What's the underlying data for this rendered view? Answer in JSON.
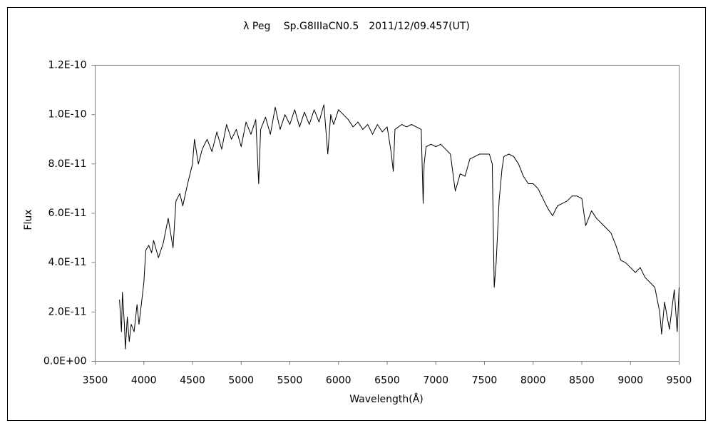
{
  "chart_data": {
    "type": "line",
    "title": "λ Peg　 Sp.G8IIIaCN0.5　2011/12/09.457(UT)",
    "x_label": "Wavelength(Å)",
    "y_label": "Flux",
    "xlim": [
      3500,
      9500
    ],
    "xticks": [
      3500,
      4000,
      4500,
      5000,
      5500,
      6000,
      6500,
      7000,
      7500,
      8000,
      8500,
      9000,
      9500
    ],
    "ylim": [
      0,
      1.2e-10
    ],
    "yticks": [
      {
        "value": 0,
        "label": "0.0E+00"
      },
      {
        "value": 2e-11,
        "label": "2.0E-11"
      },
      {
        "value": 4e-11,
        "label": "4.0E-11"
      },
      {
        "value": 6e-11,
        "label": "6.0E-11"
      },
      {
        "value": 8e-11,
        "label": "8.0E-11"
      },
      {
        "value": 1e-10,
        "label": "1.0E-10"
      },
      {
        "value": 1.2e-10,
        "label": "1.2E-10"
      }
    ],
    "grid": false,
    "series": [
      {
        "color": "#000000",
        "x": [
          3750,
          3770,
          3780,
          3800,
          3810,
          3830,
          3850,
          3870,
          3900,
          3930,
          3950,
          3980,
          4000,
          4020,
          4050,
          4080,
          4100,
          4150,
          4200,
          4250,
          4300,
          4330,
          4370,
          4400,
          4450,
          4500,
          4520,
          4560,
          4600,
          4650,
          4700,
          4750,
          4800,
          4850,
          4900,
          4950,
          5000,
          5050,
          5100,
          5150,
          5180,
          5200,
          5250,
          5300,
          5350,
          5400,
          5450,
          5500,
          5550,
          5600,
          5650,
          5700,
          5750,
          5800,
          5850,
          5890,
          5920,
          5950,
          6000,
          6050,
          6100,
          6150,
          6200,
          6250,
          6300,
          6350,
          6400,
          6450,
          6500,
          6540,
          6563,
          6580,
          6650,
          6700,
          6750,
          6800,
          6850,
          6870,
          6880,
          6900,
          6950,
          7000,
          7050,
          7100,
          7150,
          7200,
          7250,
          7300,
          7350,
          7400,
          7450,
          7500,
          7550,
          7580,
          7600,
          7620,
          7650,
          7680,
          7700,
          7750,
          7800,
          7850,
          7900,
          7950,
          8000,
          8050,
          8100,
          8150,
          8200,
          8250,
          8300,
          8350,
          8400,
          8450,
          8500,
          8540,
          8600,
          8650,
          8700,
          8750,
          8800,
          8850,
          8900,
          8950,
          9000,
          9050,
          9100,
          9150,
          9200,
          9250,
          9300,
          9320,
          9350,
          9400,
          9450,
          9480,
          9500
        ],
        "values": [
          2.5e-11,
          1.2e-11,
          2.8e-11,
          1.5e-11,
          5e-12,
          1.8e-11,
          8e-12,
          1.5e-11,
          1.2e-11,
          2.3e-11,
          1.5e-11,
          2.5e-11,
          3.2e-11,
          4.5e-11,
          4.7e-11,
          4.4e-11,
          4.9e-11,
          4.2e-11,
          4.8e-11,
          5.8e-11,
          4.6e-11,
          6.5e-11,
          6.8e-11,
          6.3e-11,
          7.2e-11,
          8e-11,
          9e-11,
          8e-11,
          8.6e-11,
          9e-11,
          8.5e-11,
          9.3e-11,
          8.6e-11,
          9.6e-11,
          9e-11,
          9.4e-11,
          8.7e-11,
          9.7e-11,
          9.2e-11,
          9.8e-11,
          7.2e-11,
          9.4e-11,
          9.9e-11,
          9.2e-11,
          1.03e-10,
          9.4e-11,
          1e-10,
          9.6e-11,
          1.02e-10,
          9.5e-11,
          1.01e-10,
          9.6e-11,
          1.02e-10,
          9.7e-11,
          1.04e-10,
          8.4e-11,
          1e-10,
          9.6e-11,
          1.02e-10,
          1e-10,
          9.8e-11,
          9.5e-11,
          9.7e-11,
          9.4e-11,
          9.6e-11,
          9.2e-11,
          9.6e-11,
          9.3e-11,
          9.5e-11,
          8.5e-11,
          7.7e-11,
          9.4e-11,
          9.6e-11,
          9.5e-11,
          9.6e-11,
          9.5e-11,
          9.4e-11,
          6.4e-11,
          8e-11,
          8.7e-11,
          8.8e-11,
          8.7e-11,
          8.8e-11,
          8.6e-11,
          8.4e-11,
          6.9e-11,
          7.6e-11,
          7.5e-11,
          8.2e-11,
          8.3e-11,
          8.4e-11,
          8.4e-11,
          8.4e-11,
          8e-11,
          3e-11,
          4e-11,
          6.5e-11,
          7.8e-11,
          8.3e-11,
          8.4e-11,
          8.3e-11,
          8e-11,
          7.5e-11,
          7.2e-11,
          7.2e-11,
          7e-11,
          6.6e-11,
          6.2e-11,
          5.9e-11,
          6.3e-11,
          6.4e-11,
          6.5e-11,
          6.7e-11,
          6.7e-11,
          6.6e-11,
          5.5e-11,
          6.1e-11,
          5.8e-11,
          5.6e-11,
          5.4e-11,
          5.2e-11,
          4.7e-11,
          4.1e-11,
          4e-11,
          3.8e-11,
          3.6e-11,
          3.8e-11,
          3.4e-11,
          3.2e-11,
          3e-11,
          2e-11,
          1.1e-11,
          2.4e-11,
          1.3e-11,
          2.9e-11,
          1.2e-11,
          3e-11
        ]
      }
    ]
  }
}
